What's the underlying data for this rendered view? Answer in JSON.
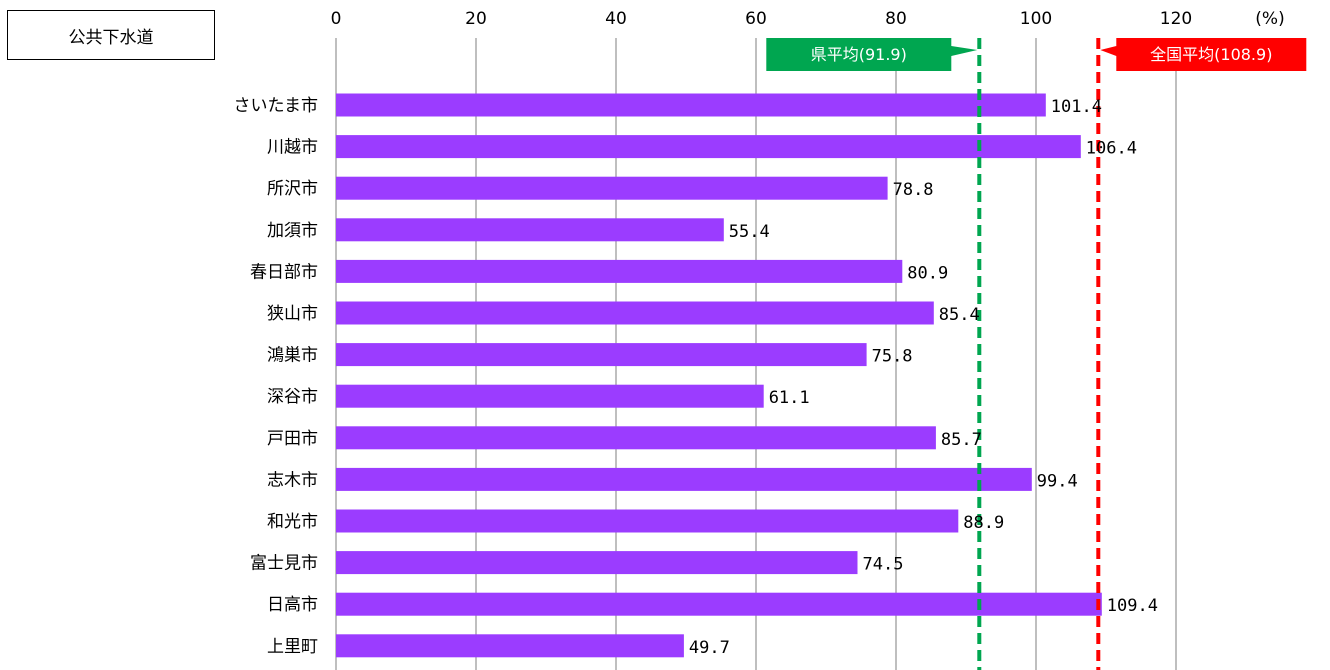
{
  "chart_data": {
    "type": "bar",
    "orientation": "horizontal",
    "title": "公共下水道",
    "unit": "(%)",
    "categories": [
      "さいたま市",
      "川越市",
      "所沢市",
      "加須市",
      "春日部市",
      "狭山市",
      "鴻巣市",
      "深谷市",
      "戸田市",
      "志木市",
      "和光市",
      "富士見市",
      "日高市",
      "上里町"
    ],
    "values": [
      101.4,
      106.4,
      78.8,
      55.4,
      80.9,
      85.4,
      75.8,
      61.1,
      85.7,
      99.4,
      88.9,
      74.5,
      109.4,
      49.7
    ],
    "value_labels": [
      "101.4",
      "106.4",
      "78.8",
      "55.4",
      "80.9",
      "85.4",
      "75.8",
      "61.1",
      "85.7",
      "99.4",
      "88.9",
      "74.5",
      "109.4",
      "49.7"
    ],
    "xlim": [
      0,
      120
    ],
    "ticks": [
      0,
      20,
      40,
      60,
      80,
      100,
      120
    ],
    "grid": true,
    "bar_color": "#9b3cff",
    "reference_lines": [
      {
        "label": "県平均(91.9)",
        "value": 91.9,
        "color": "#00a650"
      },
      {
        "label": "全国平均(108.9)",
        "value": 108.9,
        "color": "#ff0000"
      }
    ]
  }
}
